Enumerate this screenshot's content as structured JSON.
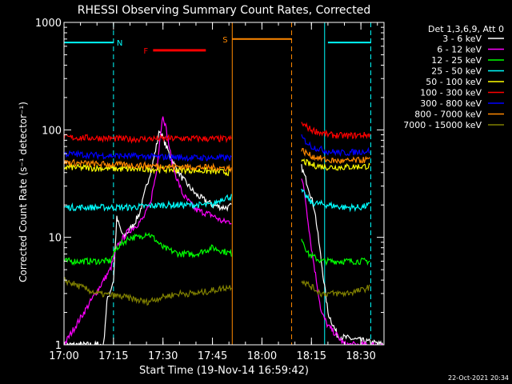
{
  "chart_data": {
    "type": "line",
    "title": "RHESSI Observing Summary Count Rates, Corrected",
    "xlabel": "Start Time (19-Nov-14 16:59:42)",
    "ylabel": "Corrected Count Rate (s⁻¹ detector⁻¹)",
    "footer": "22-Oct-2021 20:34",
    "y_scale": "log",
    "ylim": [
      1,
      1000
    ],
    "xlim_minutes": [
      0,
      97
    ],
    "x_ticks": [
      {
        "t": 0,
        "label": "17:00"
      },
      {
        "t": 15,
        "label": "17:15"
      },
      {
        "t": 30,
        "label": "17:30"
      },
      {
        "t": 45,
        "label": "17:45"
      },
      {
        "t": 60,
        "label": "18:00"
      },
      {
        "t": 75,
        "label": "18:15"
      },
      {
        "t": 90,
        "label": "18:30"
      }
    ],
    "y_ticks": [
      {
        "v": 1,
        "label": "1"
      },
      {
        "v": 10,
        "label": "10"
      },
      {
        "v": 100,
        "label": "100"
      },
      {
        "v": 1000,
        "label": "1000"
      }
    ],
    "legend_title": "Det 1,3,6,9, Att 0",
    "legend_position": "top-right, outside plot",
    "data_gap_minutes": [
      51,
      72
    ],
    "series": [
      {
        "name": "3 - 6 keV",
        "color": "#ffffff",
        "points": [
          [
            0,
            1
          ],
          [
            12,
            1
          ],
          [
            13,
            2.5
          ],
          [
            15,
            4
          ],
          [
            16,
            15
          ],
          [
            18,
            10
          ],
          [
            21,
            13
          ],
          [
            23,
            17
          ],
          [
            25,
            30
          ],
          [
            27,
            50
          ],
          [
            29,
            100
          ],
          [
            31,
            70
          ],
          [
            33,
            50
          ],
          [
            36,
            35
          ],
          [
            40,
            25
          ],
          [
            45,
            20
          ],
          [
            48,
            19
          ],
          [
            50,
            19
          ],
          [
            51,
            20
          ],
          [
            72,
            45
          ],
          [
            74,
            30
          ],
          [
            76,
            18
          ],
          [
            78,
            6
          ],
          [
            80,
            2
          ],
          [
            83,
            1.2
          ],
          [
            97,
            1
          ]
        ]
      },
      {
        "name": "6 - 12 keV",
        "color": "#ff00ff",
        "points": [
          [
            0,
            1
          ],
          [
            14,
            5
          ],
          [
            16,
            8
          ],
          [
            19,
            11
          ],
          [
            22,
            13
          ],
          [
            24,
            15
          ],
          [
            26,
            20
          ],
          [
            28,
            40
          ],
          [
            29,
            80
          ],
          [
            30,
            140
          ],
          [
            31,
            100
          ],
          [
            33,
            45
          ],
          [
            36,
            25
          ],
          [
            40,
            18
          ],
          [
            45,
            16
          ],
          [
            48,
            14
          ],
          [
            51,
            14
          ],
          [
            72,
            36
          ],
          [
            73,
            25
          ],
          [
            75,
            8
          ],
          [
            78,
            2
          ],
          [
            80,
            1.5
          ],
          [
            83,
            1.2
          ],
          [
            85,
            1
          ],
          [
            97,
            1
          ]
        ]
      },
      {
        "name": "12 - 25 keV",
        "color": "#00ff00",
        "points": [
          [
            0,
            6
          ],
          [
            14,
            6
          ],
          [
            16,
            8
          ],
          [
            20,
            10
          ],
          [
            23,
            10
          ],
          [
            25,
            11
          ],
          [
            27,
            10
          ],
          [
            30,
            8
          ],
          [
            35,
            7
          ],
          [
            40,
            7
          ],
          [
            45,
            8
          ],
          [
            51,
            7
          ],
          [
            72,
            10
          ],
          [
            74,
            7
          ],
          [
            78,
            6
          ],
          [
            85,
            6
          ],
          [
            90,
            6
          ],
          [
            93,
            6
          ]
        ]
      },
      {
        "name": "25 - 50 keV",
        "color": "#00ffff",
        "points": [
          [
            0,
            19
          ],
          [
            10,
            19
          ],
          [
            20,
            19
          ],
          [
            30,
            20
          ],
          [
            40,
            20
          ],
          [
            45,
            20
          ],
          [
            48,
            23
          ],
          [
            51,
            24
          ],
          [
            72,
            27
          ],
          [
            75,
            21
          ],
          [
            80,
            20
          ],
          [
            85,
            19
          ],
          [
            90,
            19
          ],
          [
            93,
            20
          ]
        ]
      },
      {
        "name": "50 - 100 keV",
        "color": "#ffff00",
        "points": [
          [
            0,
            45
          ],
          [
            10,
            44
          ],
          [
            20,
            43
          ],
          [
            30,
            43
          ],
          [
            40,
            42
          ],
          [
            51,
            40
          ],
          [
            72,
            52
          ],
          [
            75,
            47
          ],
          [
            80,
            45
          ],
          [
            85,
            45
          ],
          [
            93,
            46
          ]
        ]
      },
      {
        "name": "100 - 300 keV",
        "color": "#ff0000",
        "points": [
          [
            0,
            85
          ],
          [
            10,
            84
          ],
          [
            20,
            82
          ],
          [
            30,
            83
          ],
          [
            40,
            83
          ],
          [
            51,
            82
          ],
          [
            72,
            115
          ],
          [
            75,
            100
          ],
          [
            80,
            90
          ],
          [
            85,
            88
          ],
          [
            93,
            90
          ]
        ]
      },
      {
        "name": "300 - 800 keV",
        "color": "#0000ff",
        "points": [
          [
            0,
            60
          ],
          [
            10,
            58
          ],
          [
            20,
            57
          ],
          [
            30,
            56
          ],
          [
            40,
            55
          ],
          [
            51,
            55
          ],
          [
            72,
            85
          ],
          [
            75,
            70
          ],
          [
            80,
            63
          ],
          [
            85,
            61
          ],
          [
            93,
            64
          ]
        ]
      },
      {
        "name": "800 - 7000 keV",
        "color": "#ff8800",
        "points": [
          [
            0,
            50
          ],
          [
            10,
            48
          ],
          [
            20,
            47
          ],
          [
            30,
            46
          ],
          [
            40,
            45
          ],
          [
            51,
            44
          ],
          [
            72,
            65
          ],
          [
            75,
            57
          ],
          [
            80,
            52
          ],
          [
            85,
            51
          ],
          [
            93,
            53
          ]
        ]
      },
      {
        "name": "7000 - 15000 keV",
        "color": "#808000",
        "points": [
          [
            0,
            4
          ],
          [
            10,
            3
          ],
          [
            18,
            2.8
          ],
          [
            25,
            2.5
          ],
          [
            30,
            2.8
          ],
          [
            35,
            3
          ],
          [
            40,
            3
          ],
          [
            45,
            3.2
          ],
          [
            51,
            3.5
          ],
          [
            72,
            4
          ],
          [
            78,
            3
          ],
          [
            85,
            3
          ],
          [
            90,
            3.2
          ],
          [
            93,
            3.5
          ]
        ]
      }
    ],
    "annotations": [
      {
        "label": "N",
        "color": "#00ffff",
        "solid_y": 650,
        "segments": [
          [
            0,
            15
          ],
          [
            80,
            93
          ]
        ],
        "solid_verticals": [
          79
        ],
        "dashed_verticals": [
          15,
          93
        ]
      },
      {
        "label": "F",
        "color": "#ff0000",
        "y": 550,
        "segments": [
          [
            27,
            43
          ]
        ]
      },
      {
        "label": "S",
        "color": "#ff8800",
        "y": 700,
        "segments": [
          [
            51,
            69
          ]
        ],
        "solid_verticals": [
          51
        ],
        "dashed_verticals": [
          69
        ]
      }
    ]
  }
}
